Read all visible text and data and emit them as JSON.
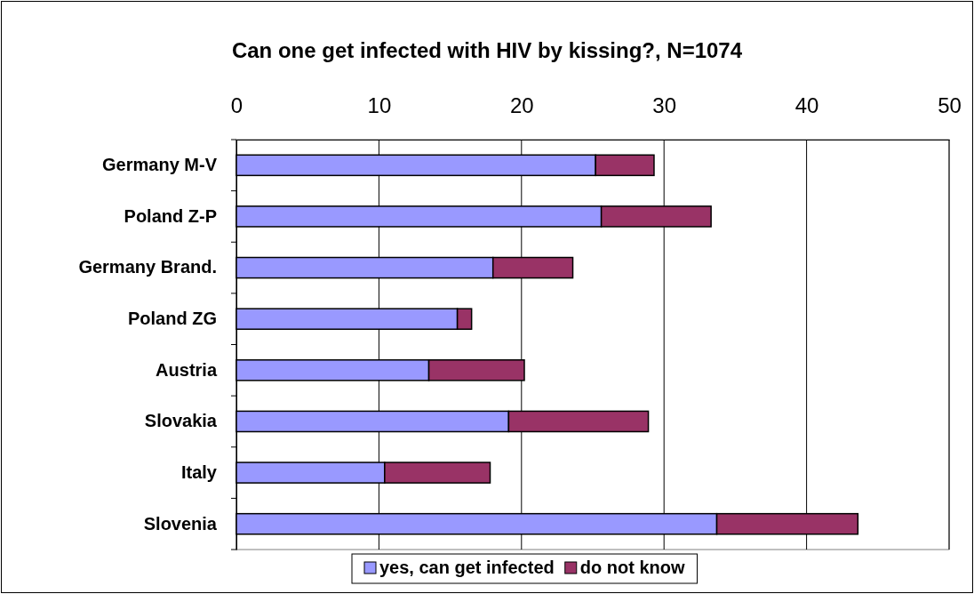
{
  "chart_data": {
    "type": "bar",
    "title": "Can one get infected with HIV by kissing?, N=1074",
    "orientation": "horizontal",
    "stacked": true,
    "categories": [
      "Germany M-V",
      "Poland Z-P",
      "Germany Brand.",
      "Poland ZG",
      "Austria",
      "Slovakia",
      "Italy",
      "Slovenia"
    ],
    "series": [
      {
        "name": "yes, can get infected",
        "color": "#9999ff",
        "values": [
          25.2,
          25.6,
          18.0,
          15.5,
          13.5,
          19.1,
          10.4,
          33.7
        ]
      },
      {
        "name": "do not know",
        "color": "#993366",
        "values": [
          4.1,
          7.7,
          5.6,
          1.0,
          6.7,
          9.8,
          7.4,
          9.9
        ]
      }
    ],
    "xlim": [
      0,
      50
    ],
    "xticks": [
      0,
      10,
      20,
      30,
      40,
      50
    ],
    "grid": "x",
    "legend": "bottom"
  }
}
